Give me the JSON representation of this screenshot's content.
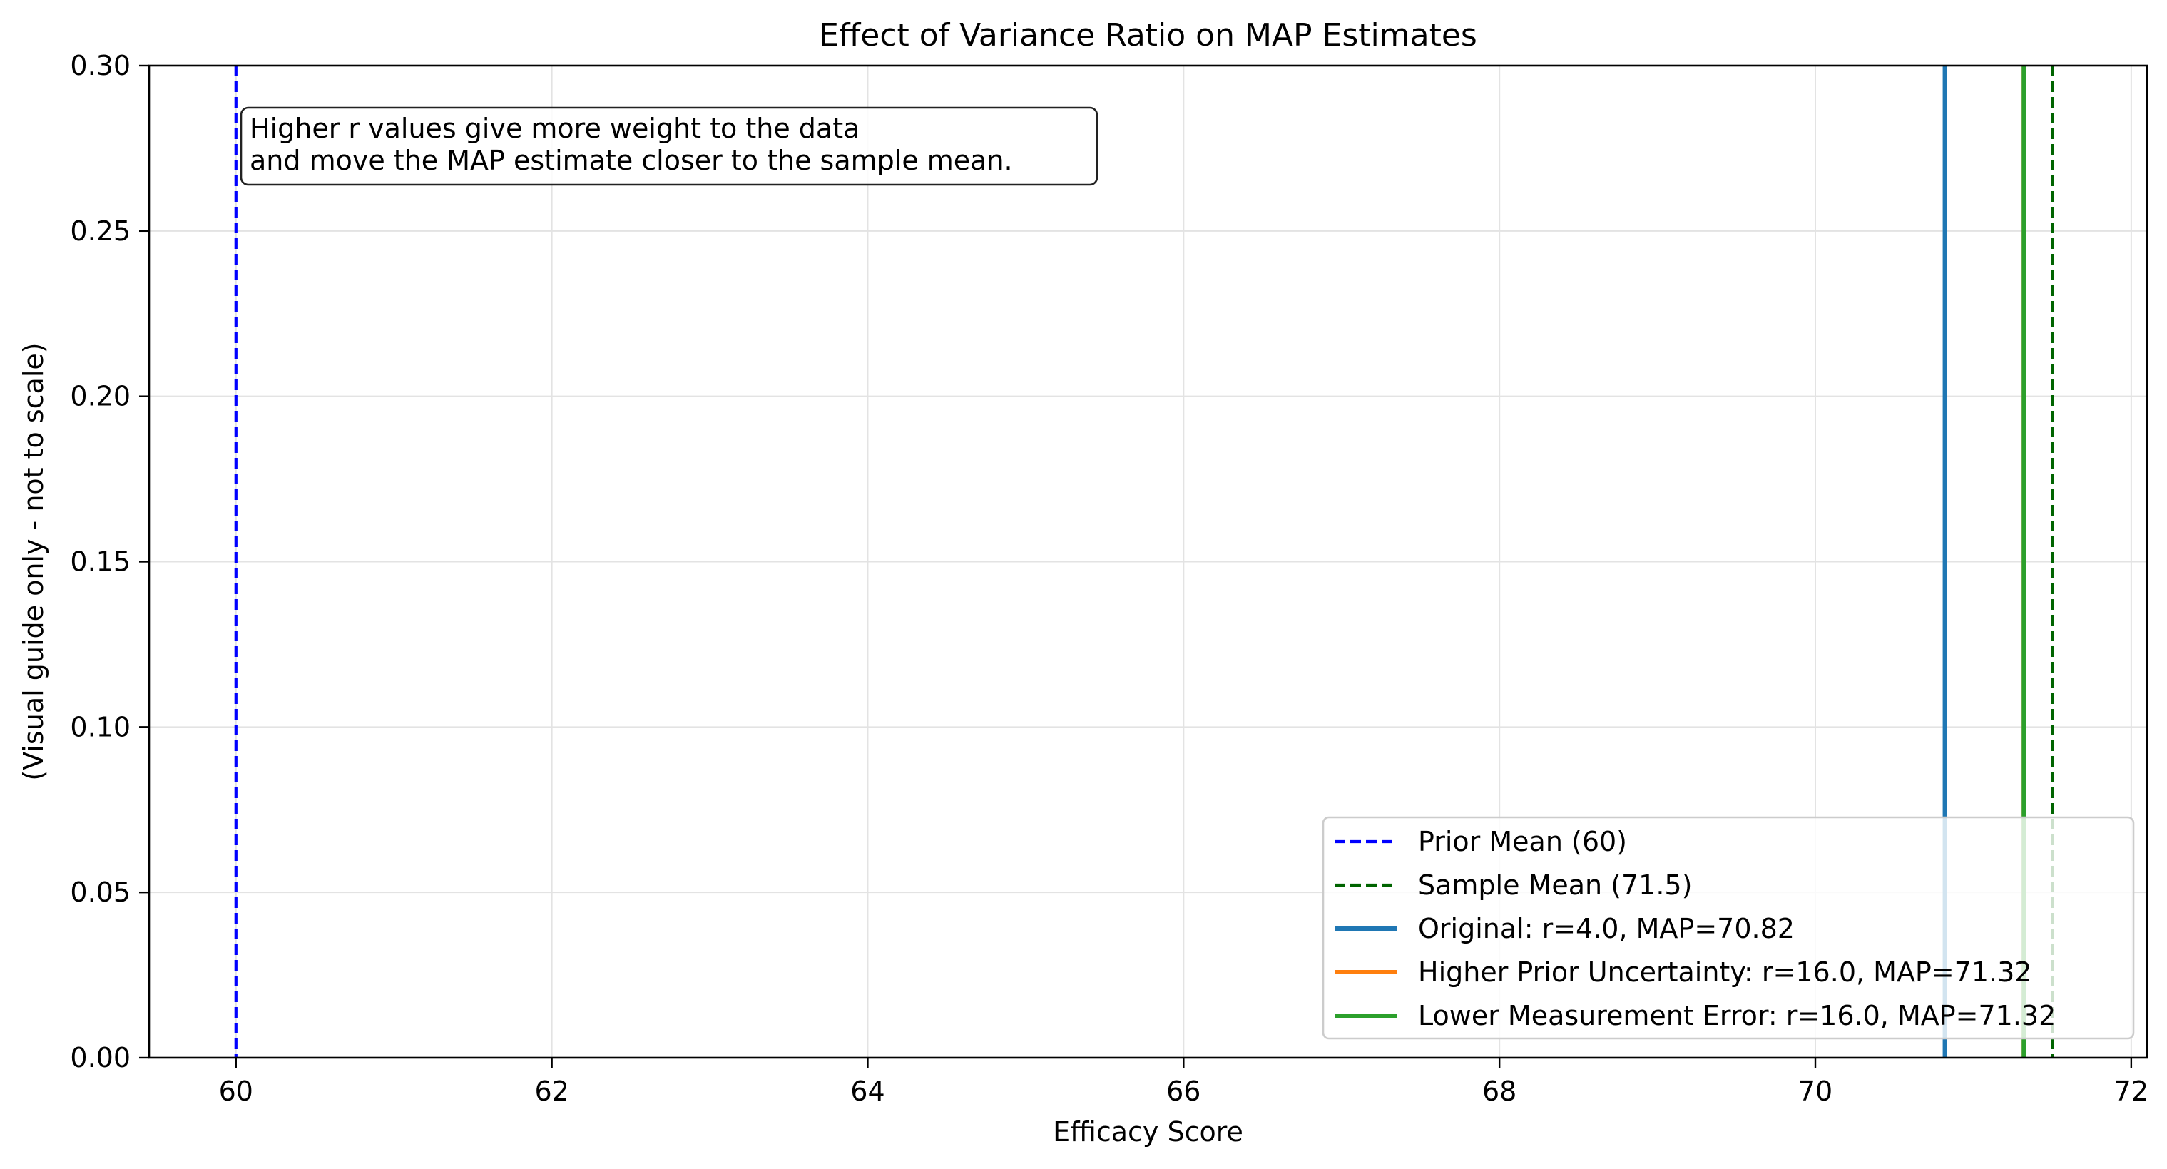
{
  "chart_data": {
    "type": "line",
    "title": "Effect of Variance Ratio on MAP Estimates",
    "xlabel": "Efficacy Score",
    "ylabel": "(Visual guide only - not to scale)",
    "xlim": [
      59.45,
      72.1
    ],
    "ylim": [
      0,
      0.3
    ],
    "xticks": [
      60,
      62,
      64,
      66,
      68,
      70,
      72
    ],
    "yticks": [
      0.0,
      0.05,
      0.1,
      0.15,
      0.2,
      0.25,
      0.3
    ],
    "ytick_labels": [
      "0.00",
      "0.05",
      "0.10",
      "0.15",
      "0.20",
      "0.25",
      "0.30"
    ],
    "grid": true,
    "legend_position": "lower-right",
    "annotation": {
      "lines": [
        "Higher r values give more weight to the data",
        "and move the MAP estimate closer to the sample mean."
      ]
    },
    "series": [
      {
        "name": "Prior Mean (60)",
        "x": 60,
        "color": "#0000ff",
        "style": "dashed"
      },
      {
        "name": "Sample Mean (71.5)",
        "x": 71.5,
        "color": "#006400",
        "style": "dashed"
      },
      {
        "name": "Original: r=4.0, MAP=70.82",
        "x": 70.82,
        "color": "#1f77b4",
        "style": "solid"
      },
      {
        "name": "Higher Prior Uncertainty: r=16.0, MAP=71.32",
        "x": 71.32,
        "color": "#ff7f0e",
        "style": "solid"
      },
      {
        "name": "Lower Measurement Error: r=16.0, MAP=71.32",
        "x": 71.32,
        "color": "#2ca02c",
        "style": "solid"
      }
    ]
  }
}
